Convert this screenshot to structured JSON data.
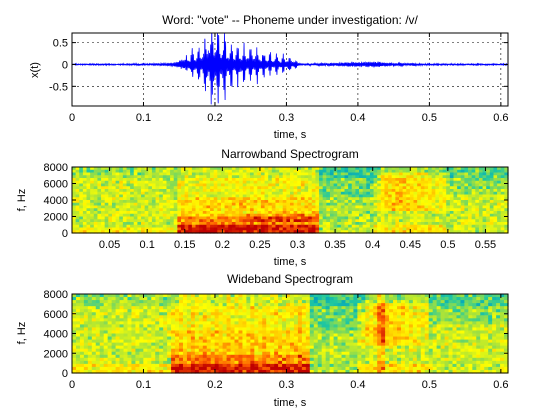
{
  "chart_data": [
    {
      "type": "line",
      "title": "Word: \"vote\" --  Phoneme under investigation: /v/",
      "xlabel": "time, s",
      "ylabel": "x(t)",
      "xlim": [
        0,
        0.61
      ],
      "ylim": [
        -0.95,
        0.72
      ],
      "xticks": [
        "0",
        "0.1",
        "0.2",
        "0.3",
        "0.4",
        "0.5",
        "0.6"
      ],
      "yticks": [
        "-0.5",
        "0",
        "0.5"
      ],
      "grid": true,
      "color": "#0000ff",
      "series": [
        {
          "x": [
            0.0,
            0.1,
            0.14,
            0.155,
            0.165,
            0.175,
            0.185,
            0.195,
            0.2,
            0.21,
            0.22,
            0.23,
            0.24,
            0.25,
            0.26,
            0.27,
            0.28,
            0.29,
            0.3,
            0.31,
            0.32,
            0.43,
            0.44,
            0.46,
            0.48,
            0.5,
            0.61
          ],
          "y_env": [
            0.0,
            0.02,
            0.05,
            0.18,
            0.3,
            0.42,
            0.6,
            0.72,
            0.72,
            0.62,
            0.58,
            0.5,
            0.45,
            0.42,
            0.38,
            0.3,
            0.25,
            0.22,
            0.2,
            0.15,
            0.02,
            0.1,
            0.06,
            0.05,
            0.04,
            0.02,
            0.0
          ]
        }
      ]
    },
    {
      "type": "heatmap",
      "title": "Narrowband Spectrogram",
      "xlabel": "time, s",
      "ylabel": "f, Hz",
      "xlim": [
        0,
        0.58
      ],
      "ylim": [
        0,
        8000
      ],
      "xticks": [
        "0.05",
        "0.1",
        "0.15",
        "0.2",
        "0.25",
        "0.3",
        "0.35",
        "0.4",
        "0.45",
        "0.5",
        "0.55"
      ],
      "yticks": [
        "0",
        "2000",
        "4000",
        "6000",
        "8000"
      ],
      "colormap": [
        "#00a0c0",
        "#20c8a0",
        "#a0e040",
        "#ffff00",
        "#ffc000",
        "#ff6000",
        "#c00000"
      ]
    },
    {
      "type": "heatmap",
      "title": "Wideband Spectrogram",
      "xlabel": "time, s",
      "ylabel": "f, Hz",
      "xlim": [
        0,
        0.61
      ],
      "ylim": [
        0,
        8000
      ],
      "xticks": [
        "0",
        "0.1",
        "0.2",
        "0.3",
        "0.4",
        "0.5",
        "0.6"
      ],
      "yticks": [
        "0",
        "2000",
        "4000",
        "6000",
        "8000"
      ],
      "colormap": [
        "#00a0c0",
        "#20c8a0",
        "#a0e040",
        "#ffff00",
        "#ffc000",
        "#ff6000",
        "#c00000"
      ]
    }
  ]
}
